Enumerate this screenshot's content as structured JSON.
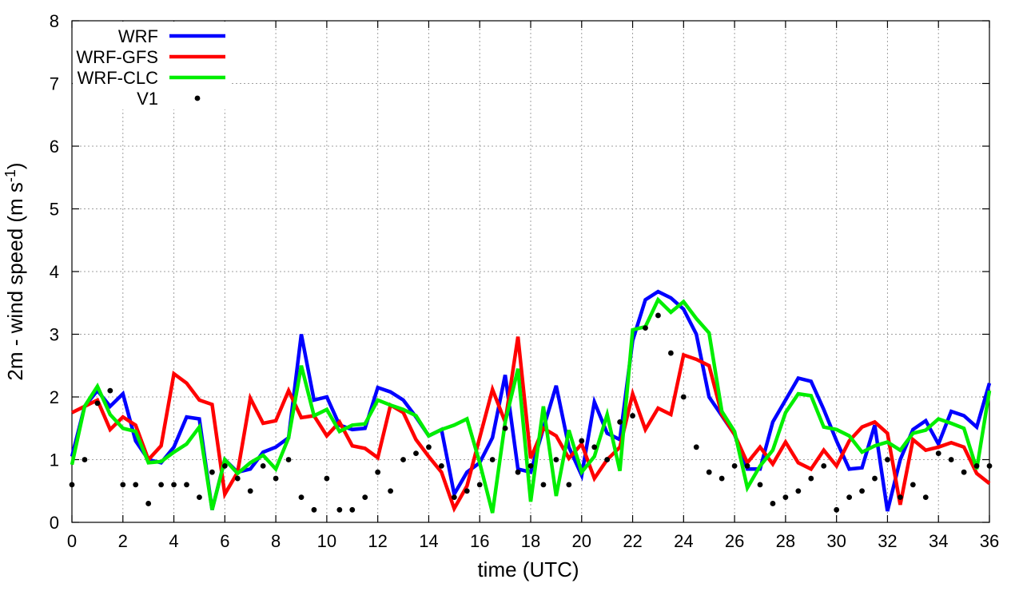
{
  "chart_data": {
    "type": "line",
    "xlabel": "time (UTC)",
    "ylabel": "2m - wind speed  (m s",
    "ylabel_sup": "-1",
    "ylabel_end": ")",
    "xlim": [
      0,
      36
    ],
    "ylim": [
      0,
      8
    ],
    "xticks": [
      0,
      2,
      4,
      6,
      8,
      10,
      12,
      14,
      16,
      18,
      20,
      22,
      24,
      26,
      28,
      30,
      32,
      34,
      36
    ],
    "yticks": [
      0,
      1,
      2,
      3,
      4,
      5,
      6,
      7,
      8
    ],
    "grid": true,
    "legend_position": "top-left",
    "series": [
      {
        "name": "WRF",
        "style": "line",
        "color": "#0000ff",
        "points": [
          [
            0,
            1.05
          ],
          [
            0.5,
            1.85
          ],
          [
            1,
            2.1
          ],
          [
            1.5,
            1.85
          ],
          [
            2,
            2.05
          ],
          [
            2.5,
            1.3
          ],
          [
            3,
            1.0
          ],
          [
            3.5,
            0.95
          ],
          [
            4,
            1.2
          ],
          [
            4.5,
            1.68
          ],
          [
            5,
            1.65
          ],
          [
            5.5,
            0.2
          ],
          [
            6,
            1.0
          ],
          [
            6.5,
            0.8
          ],
          [
            7,
            0.85
          ],
          [
            7.5,
            1.12
          ],
          [
            8,
            1.2
          ],
          [
            8.5,
            1.35
          ],
          [
            9,
            3.0
          ],
          [
            9.5,
            1.95
          ],
          [
            10,
            2.0
          ],
          [
            10.5,
            1.55
          ],
          [
            11,
            1.48
          ],
          [
            11.5,
            1.5
          ],
          [
            12,
            2.15
          ],
          [
            12.5,
            2.08
          ],
          [
            13,
            1.95
          ],
          [
            13.5,
            1.68
          ],
          [
            14,
            1.38
          ],
          [
            14.5,
            1.48
          ],
          [
            15,
            0.45
          ],
          [
            15.5,
            0.8
          ],
          [
            16,
            0.95
          ],
          [
            16.5,
            1.35
          ],
          [
            17,
            2.35
          ],
          [
            17.5,
            0.85
          ],
          [
            18,
            0.8
          ],
          [
            18.5,
            1.5
          ],
          [
            19,
            2.18
          ],
          [
            19.5,
            1.2
          ],
          [
            20,
            0.75
          ],
          [
            20.5,
            1.92
          ],
          [
            21,
            1.42
          ],
          [
            21.5,
            1.32
          ],
          [
            22,
            2.9
          ],
          [
            22.5,
            3.55
          ],
          [
            23,
            3.68
          ],
          [
            23.5,
            3.58
          ],
          [
            24,
            3.4
          ],
          [
            24.5,
            3.0
          ],
          [
            25,
            2.0
          ],
          [
            25.5,
            1.7
          ],
          [
            26,
            1.4
          ],
          [
            26.5,
            0.85
          ],
          [
            27,
            0.85
          ],
          [
            27.5,
            1.6
          ],
          [
            28,
            1.95
          ],
          [
            28.5,
            2.3
          ],
          [
            29,
            2.25
          ],
          [
            29.5,
            1.8
          ],
          [
            30,
            1.3
          ],
          [
            30.5,
            0.85
          ],
          [
            31,
            0.87
          ],
          [
            31.5,
            1.55
          ],
          [
            32,
            0.18
          ],
          [
            32.5,
            1.0
          ],
          [
            33,
            1.48
          ],
          [
            33.5,
            1.62
          ],
          [
            34,
            1.25
          ],
          [
            34.5,
            1.77
          ],
          [
            35,
            1.7
          ],
          [
            35.5,
            1.52
          ],
          [
            36,
            2.22
          ]
        ]
      },
      {
        "name": "WRF-GFS",
        "style": "line",
        "color": "#ff0000",
        "points": [
          [
            0,
            1.75
          ],
          [
            0.5,
            1.85
          ],
          [
            1,
            1.95
          ],
          [
            1.5,
            1.48
          ],
          [
            2,
            1.68
          ],
          [
            2.5,
            1.55
          ],
          [
            3,
            1.0
          ],
          [
            3.5,
            1.22
          ],
          [
            4,
            2.37
          ],
          [
            4.5,
            2.22
          ],
          [
            5,
            1.95
          ],
          [
            5.5,
            1.88
          ],
          [
            6,
            0.45
          ],
          [
            6.5,
            0.8
          ],
          [
            7,
            1.98
          ],
          [
            7.5,
            1.58
          ],
          [
            8,
            1.62
          ],
          [
            8.5,
            2.1
          ],
          [
            9,
            1.67
          ],
          [
            9.5,
            1.7
          ],
          [
            10,
            1.38
          ],
          [
            10.5,
            1.6
          ],
          [
            11,
            1.22
          ],
          [
            11.5,
            1.18
          ],
          [
            12,
            1.03
          ],
          [
            12.5,
            1.87
          ],
          [
            13,
            1.75
          ],
          [
            13.5,
            1.32
          ],
          [
            14,
            1.05
          ],
          [
            14.5,
            0.8
          ],
          [
            15,
            0.22
          ],
          [
            15.5,
            0.58
          ],
          [
            16,
            1.35
          ],
          [
            16.5,
            2.12
          ],
          [
            17,
            1.6
          ],
          [
            17.5,
            2.96
          ],
          [
            18,
            1.02
          ],
          [
            18.5,
            1.5
          ],
          [
            19,
            1.38
          ],
          [
            19.5,
            1.02
          ],
          [
            20,
            1.25
          ],
          [
            20.5,
            0.7
          ],
          [
            21,
            1.0
          ],
          [
            21.5,
            1.2
          ],
          [
            22,
            2.05
          ],
          [
            22.5,
            1.48
          ],
          [
            23,
            1.82
          ],
          [
            23.5,
            1.72
          ],
          [
            24,
            2.67
          ],
          [
            24.5,
            2.6
          ],
          [
            25,
            2.5
          ],
          [
            25.5,
            1.72
          ],
          [
            26,
            1.4
          ],
          [
            26.5,
            0.95
          ],
          [
            27,
            1.2
          ],
          [
            27.5,
            0.93
          ],
          [
            28,
            1.28
          ],
          [
            28.5,
            0.95
          ],
          [
            29,
            0.85
          ],
          [
            29.5,
            1.15
          ],
          [
            30,
            0.9
          ],
          [
            30.5,
            1.3
          ],
          [
            31,
            1.52
          ],
          [
            31.5,
            1.6
          ],
          [
            32,
            1.42
          ],
          [
            32.5,
            0.28
          ],
          [
            33,
            1.32
          ],
          [
            33.5,
            1.15
          ],
          [
            34,
            1.2
          ],
          [
            34.5,
            1.27
          ],
          [
            35,
            1.2
          ],
          [
            35.5,
            0.78
          ],
          [
            36,
            0.62
          ]
        ]
      },
      {
        "name": "WRF-CLC",
        "style": "line",
        "color": "#00ee00",
        "points": [
          [
            0,
            0.92
          ],
          [
            0.5,
            1.85
          ],
          [
            1,
            2.17
          ],
          [
            1.5,
            1.72
          ],
          [
            2,
            1.5
          ],
          [
            2.5,
            1.45
          ],
          [
            3,
            0.95
          ],
          [
            3.5,
            0.97
          ],
          [
            4,
            1.12
          ],
          [
            4.5,
            1.25
          ],
          [
            5,
            1.52
          ],
          [
            5.5,
            0.2
          ],
          [
            6,
            1.0
          ],
          [
            6.5,
            0.78
          ],
          [
            7,
            0.95
          ],
          [
            7.5,
            1.07
          ],
          [
            8,
            0.85
          ],
          [
            8.5,
            1.35
          ],
          [
            9,
            2.5
          ],
          [
            9.5,
            1.7
          ],
          [
            10,
            1.8
          ],
          [
            10.5,
            1.45
          ],
          [
            11,
            1.55
          ],
          [
            11.5,
            1.57
          ],
          [
            12,
            1.95
          ],
          [
            12.5,
            1.87
          ],
          [
            13,
            1.8
          ],
          [
            13.5,
            1.7
          ],
          [
            14,
            1.38
          ],
          [
            14.5,
            1.48
          ],
          [
            15,
            1.55
          ],
          [
            15.5,
            1.65
          ],
          [
            16,
            0.95
          ],
          [
            16.5,
            0.15
          ],
          [
            17,
            1.6
          ],
          [
            17.5,
            2.45
          ],
          [
            18,
            0.33
          ],
          [
            18.5,
            1.85
          ],
          [
            19,
            0.42
          ],
          [
            19.5,
            1.47
          ],
          [
            20,
            0.8
          ],
          [
            20.5,
            1.05
          ],
          [
            21,
            1.72
          ],
          [
            21.5,
            0.82
          ],
          [
            22,
            3.07
          ],
          [
            22.5,
            3.12
          ],
          [
            23,
            3.55
          ],
          [
            23.5,
            3.35
          ],
          [
            24,
            3.52
          ],
          [
            24.5,
            3.25
          ],
          [
            25,
            3.02
          ],
          [
            25.5,
            1.77
          ],
          [
            26,
            1.45
          ],
          [
            26.5,
            0.55
          ],
          [
            27,
            0.9
          ],
          [
            27.5,
            1.15
          ],
          [
            28,
            1.75
          ],
          [
            28.5,
            2.05
          ],
          [
            29,
            2.02
          ],
          [
            29.5,
            1.52
          ],
          [
            30,
            1.48
          ],
          [
            30.5,
            1.38
          ],
          [
            31,
            1.12
          ],
          [
            31.5,
            1.22
          ],
          [
            32,
            1.28
          ],
          [
            32.5,
            1.15
          ],
          [
            33,
            1.42
          ],
          [
            33.5,
            1.47
          ],
          [
            34,
            1.65
          ],
          [
            34.5,
            1.58
          ],
          [
            35,
            1.5
          ],
          [
            35.5,
            0.85
          ],
          [
            36,
            2.1
          ]
        ]
      },
      {
        "name": "V1",
        "style": "points",
        "color": "#000000",
        "points": [
          [
            0,
            0.6
          ],
          [
            0.5,
            1.0
          ],
          [
            1,
            1.9
          ],
          [
            1.5,
            2.1
          ],
          [
            2,
            0.6
          ],
          [
            2.5,
            0.6
          ],
          [
            3,
            0.3
          ],
          [
            3.5,
            0.6
          ],
          [
            4,
            0.6
          ],
          [
            4.5,
            0.6
          ],
          [
            5,
            0.4
          ],
          [
            5.5,
            0.8
          ],
          [
            6,
            0.9
          ],
          [
            6.5,
            0.7
          ],
          [
            7,
            0.5
          ],
          [
            7.5,
            0.9
          ],
          [
            8,
            0.7
          ],
          [
            8.5,
            1.0
          ],
          [
            9,
            0.4
          ],
          [
            9.5,
            0.2
          ],
          [
            10,
            0.7
          ],
          [
            10.5,
            0.2
          ],
          [
            11,
            0.2
          ],
          [
            11.5,
            0.4
          ],
          [
            12,
            0.8
          ],
          [
            12.5,
            0.5
          ],
          [
            13,
            1.0
          ],
          [
            13.5,
            1.1
          ],
          [
            14,
            1.2
          ],
          [
            14.5,
            0.9
          ],
          [
            15,
            0.4
          ],
          [
            15.5,
            0.5
          ],
          [
            16,
            0.6
          ],
          [
            16.5,
            1.0
          ],
          [
            17,
            1.5
          ],
          [
            17.5,
            0.8
          ],
          [
            18,
            0.9
          ],
          [
            18.5,
            0.6
          ],
          [
            19,
            1.0
          ],
          [
            19.5,
            0.6
          ],
          [
            20,
            1.3
          ],
          [
            20.5,
            1.2
          ],
          [
            21,
            1.0
          ],
          [
            21.5,
            1.6
          ],
          [
            22,
            1.7
          ],
          [
            22.5,
            3.1
          ],
          [
            23,
            3.3
          ],
          [
            23.5,
            2.7
          ],
          [
            24,
            2.0
          ],
          [
            24.5,
            1.2
          ],
          [
            25,
            0.8
          ],
          [
            25.5,
            0.7
          ],
          [
            26,
            0.9
          ],
          [
            26.5,
            0.9
          ],
          [
            27,
            0.6
          ],
          [
            27.5,
            0.3
          ],
          [
            28,
            0.4
          ],
          [
            28.5,
            0.5
          ],
          [
            29,
            0.7
          ],
          [
            29.5,
            0.9
          ],
          [
            30,
            0.2
          ],
          [
            30.5,
            0.4
          ],
          [
            31,
            0.5
          ],
          [
            31.5,
            0.7
          ],
          [
            32,
            1.0
          ],
          [
            32.5,
            0.4
          ],
          [
            33,
            0.6
          ],
          [
            33.5,
            0.4
          ],
          [
            34,
            1.1
          ],
          [
            34.5,
            1.0
          ],
          [
            35,
            0.8
          ],
          [
            35.5,
            0.9
          ],
          [
            36,
            0.9
          ]
        ]
      }
    ]
  }
}
